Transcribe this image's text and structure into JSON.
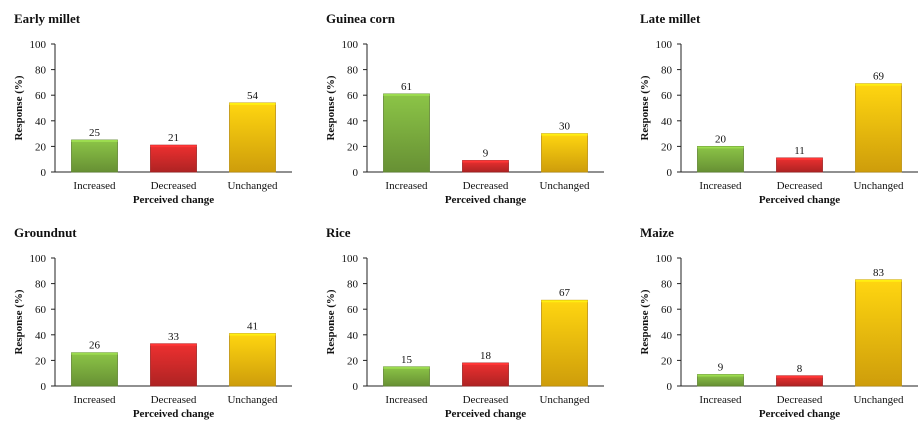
{
  "chart_data": [
    {
      "type": "bar",
      "title": "Early millet",
      "categories": [
        "Increased",
        "Decreased",
        "Unchanged"
      ],
      "values": [
        25,
        21,
        54
      ],
      "xlabel": "Perceived change",
      "ylabel": "Response (%)",
      "ylim": [
        0,
        100
      ],
      "yticks": [
        0,
        20,
        40,
        60,
        80,
        100
      ],
      "grid": false,
      "colors": [
        "#7db03f",
        "#d42b2b",
        "#fbbf0e"
      ]
    },
    {
      "type": "bar",
      "title": "Guinea corn",
      "categories": [
        "Increased",
        "Decreased",
        "Unchanged"
      ],
      "values": [
        61,
        9,
        30
      ],
      "xlabel": "Perceived change",
      "ylabel": "Response (%)",
      "ylim": [
        0,
        100
      ],
      "yticks": [
        0,
        20,
        40,
        60,
        80,
        100
      ],
      "grid": false,
      "colors": [
        "#7db03f",
        "#d42b2b",
        "#fbbf0e"
      ]
    },
    {
      "type": "bar",
      "title": "Late millet",
      "categories": [
        "Increased",
        "Decreased",
        "Unchanged"
      ],
      "values": [
        20,
        11,
        69
      ],
      "xlabel": "Perceived change",
      "ylabel": "Response (%)",
      "ylim": [
        0,
        100
      ],
      "yticks": [
        0,
        20,
        40,
        60,
        80,
        100
      ],
      "grid": false,
      "colors": [
        "#7db03f",
        "#d42b2b",
        "#fbbf0e"
      ]
    },
    {
      "type": "bar",
      "title": "Groundnut",
      "categories": [
        "Increased",
        "Decreased",
        "Unchanged"
      ],
      "values": [
        26,
        33,
        41
      ],
      "xlabel": "Perceived change",
      "ylabel": "Response (%)",
      "ylim": [
        0,
        100
      ],
      "yticks": [
        0,
        20,
        40,
        60,
        80,
        100
      ],
      "grid": false,
      "colors": [
        "#7db03f",
        "#d42b2b",
        "#fbbf0e"
      ]
    },
    {
      "type": "bar",
      "title": "Rice",
      "categories": [
        "Increased",
        "Decreased",
        "Unchanged"
      ],
      "values": [
        15,
        18,
        67
      ],
      "xlabel": "Perceived change",
      "ylabel": "Response (%)",
      "ylim": [
        0,
        100
      ],
      "yticks": [
        0,
        20,
        40,
        60,
        80,
        100
      ],
      "grid": false,
      "colors": [
        "#7db03f",
        "#d42b2b",
        "#fbbf0e"
      ]
    },
    {
      "type": "bar",
      "title": "Maize",
      "categories": [
        "Increased",
        "Decreased",
        "Unchanged"
      ],
      "values": [
        9,
        8,
        83
      ],
      "xlabel": "Perceived change",
      "ylabel": "Response (%)",
      "ylim": [
        0,
        100
      ],
      "yticks": [
        0,
        20,
        40,
        60,
        80,
        100
      ],
      "grid": false,
      "colors": [
        "#7db03f",
        "#d42b2b",
        "#fbbf0e"
      ]
    }
  ]
}
